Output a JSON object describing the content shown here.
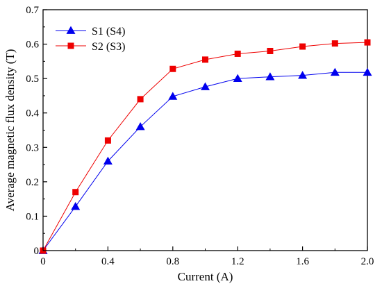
{
  "chart_data": {
    "type": "line",
    "title": "",
    "xlabel": "Current (A)",
    "ylabel": "Average magnetic flux density (T)",
    "xlim": [
      0,
      2.0
    ],
    "ylim": [
      0,
      0.7
    ],
    "xticks": [
      0,
      0.4,
      0.8,
      1.2,
      1.6,
      2.0
    ],
    "xtick_labels": [
      "0",
      "0.4",
      "0.8",
      "1.2",
      "1.6",
      "2.0"
    ],
    "yticks": [
      0,
      0.1,
      0.2,
      0.3,
      0.4,
      0.5,
      0.6,
      0.7
    ],
    "ytick_labels": [
      "0",
      "0.1",
      "0.2",
      "0.3",
      "0.4",
      "0.5",
      "0.6",
      "0.7"
    ],
    "grid": false,
    "legend_position": "top-left",
    "x": [
      0,
      0.2,
      0.4,
      0.6,
      0.8,
      1.0,
      1.2,
      1.4,
      1.6,
      1.8,
      2.0
    ],
    "series": [
      {
        "name": "S1 (S4)",
        "marker": "triangle",
        "color": "#0000ee",
        "values": [
          0.0,
          0.128,
          0.26,
          0.36,
          0.448,
          0.476,
          0.5,
          0.505,
          0.509,
          0.518,
          0.518
        ]
      },
      {
        "name": "S2 (S3)",
        "marker": "square",
        "color": "#ee0000",
        "values": [
          0.0,
          0.17,
          0.32,
          0.44,
          0.528,
          0.555,
          0.572,
          0.58,
          0.593,
          0.602,
          0.605
        ]
      }
    ]
  }
}
